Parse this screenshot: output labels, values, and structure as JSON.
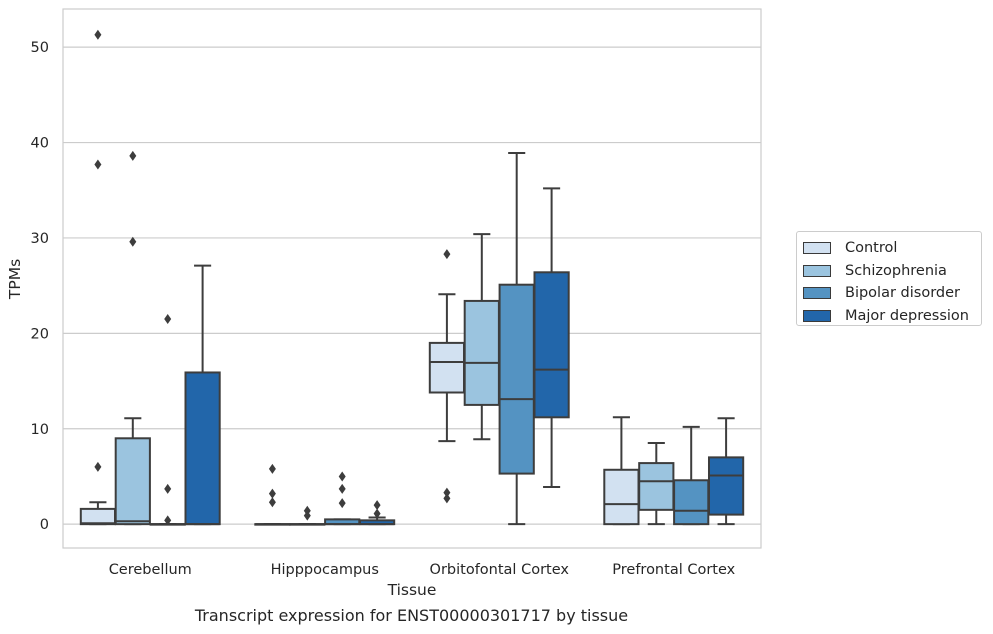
{
  "chart_data": {
    "type": "box",
    "caption": "Transcript expression for ENST00000301717 by tissue",
    "xlabel": "Tissue",
    "ylabel": "TPMs",
    "ylim": [
      -2.5,
      54
    ],
    "yticks": [
      0,
      10,
      20,
      30,
      40,
      50
    ],
    "grid": true,
    "legend_position": "right",
    "categories": [
      "Cerebellum",
      "Hipppocampus",
      "Orbitofontal Cortex",
      "Prefrontal Cortex"
    ],
    "series": [
      {
        "name": "Control",
        "color": "#d2e1f1",
        "boxes": [
          {
            "q1": 0,
            "median": 0.1,
            "q3": 1.6,
            "whisker_low": 0,
            "whisker_high": 2.3,
            "outliers": [
              6.0,
              37.7,
              51.3
            ]
          },
          {
            "q1": 0,
            "median": 0,
            "q3": 0,
            "whisker_low": 0,
            "whisker_high": 0,
            "outliers": [
              2.3,
              3.2,
              5.8
            ]
          },
          {
            "q1": 13.8,
            "median": 17.0,
            "q3": 19.0,
            "whisker_low": 8.7,
            "whisker_high": 24.1,
            "outliers": [
              2.7,
              3.3,
              28.3
            ]
          },
          {
            "q1": 0,
            "median": 2.1,
            "q3": 5.7,
            "whisker_low": 0,
            "whisker_high": 11.2,
            "outliers": []
          }
        ]
      },
      {
        "name": "Schizophrenia",
        "color": "#9bc4df",
        "boxes": [
          {
            "q1": 0,
            "median": 0.3,
            "q3": 9.0,
            "whisker_low": 0,
            "whisker_high": 11.1,
            "outliers": [
              29.6,
              38.6
            ]
          },
          {
            "q1": 0,
            "median": 0,
            "q3": 0,
            "whisker_low": 0,
            "whisker_high": 0,
            "outliers": [
              0.9,
              1.4
            ]
          },
          {
            "q1": 12.5,
            "median": 16.9,
            "q3": 23.4,
            "whisker_low": 8.9,
            "whisker_high": 30.4,
            "outliers": []
          },
          {
            "q1": 1.5,
            "median": 4.5,
            "q3": 6.4,
            "whisker_low": 0,
            "whisker_high": 8.5,
            "outliers": []
          }
        ]
      },
      {
        "name": "Bipolar disorder",
        "color": "#5493c2",
        "boxes": [
          {
            "q1": 0,
            "median": 0,
            "q3": 0,
            "whisker_low": 0,
            "whisker_high": 0,
            "outliers": [
              0.4,
              3.7,
              21.5
            ]
          },
          {
            "q1": 0,
            "median": 0,
            "q3": 0.5,
            "whisker_low": 0,
            "whisker_high": 0.5,
            "outliers": [
              2.2,
              3.7,
              5.0
            ]
          },
          {
            "q1": 5.3,
            "median": 13.1,
            "q3": 25.1,
            "whisker_low": 0,
            "whisker_high": 38.9,
            "outliers": []
          },
          {
            "q1": 0,
            "median": 1.4,
            "q3": 4.6,
            "whisker_low": 0,
            "whisker_high": 10.2,
            "outliers": []
          }
        ]
      },
      {
        "name": "Major depression",
        "color": "#2266aa",
        "boxes": [
          {
            "q1": 0,
            "median": 0,
            "q3": 15.9,
            "whisker_low": 0,
            "whisker_high": 27.1,
            "outliers": []
          },
          {
            "q1": 0,
            "median": 0,
            "q3": 0.4,
            "whisker_low": 0,
            "whisker_high": 0.7,
            "outliers": [
              1.1,
              2.0
            ]
          },
          {
            "q1": 11.2,
            "median": 16.2,
            "q3": 26.4,
            "whisker_low": 3.9,
            "whisker_high": 35.2,
            "outliers": []
          },
          {
            "q1": 1.0,
            "median": 5.1,
            "q3": 7.0,
            "whisker_low": 0,
            "whisker_high": 11.1,
            "outliers": []
          }
        ]
      }
    ]
  }
}
